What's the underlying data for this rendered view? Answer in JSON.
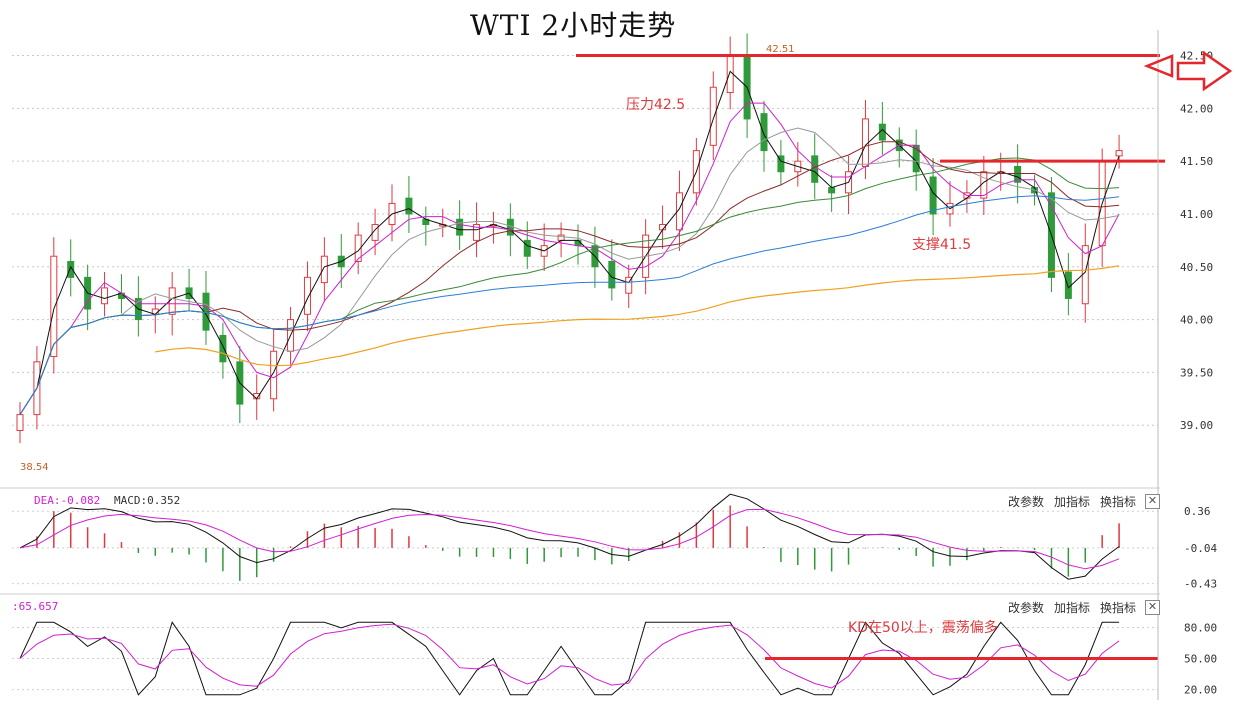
{
  "title": "WTI 2小时走势",
  "price_axis_ticks": [
    "42.50",
    "42.00",
    "41.50",
    "41.00",
    "40.50",
    "40.00",
    "39.50",
    "39.00"
  ],
  "high_label": "42.51",
  "low_label": "38.54",
  "annotations": {
    "resistance": "压力42.5",
    "support": "支撑41.5",
    "kd_note": "KD在50以上，震荡偏多"
  },
  "macd_panel": {
    "dea_label": "DEA:-0.082",
    "macd_label": "MACD:0.352",
    "ticks": [
      "0.36",
      "-0.04",
      "-0.43"
    ],
    "buttons": {
      "params": "改参数",
      "add": "加指标",
      "swap": "换指标",
      "close": "✕"
    }
  },
  "kd_panel": {
    "value_label": ":65.657",
    "ticks": [
      "80.00",
      "50.00",
      "20.00"
    ],
    "buttons": {
      "params": "改参数",
      "add": "加指标",
      "swap": "换指标",
      "close": "✕"
    }
  },
  "colors": {
    "up": "#e0393e",
    "down": "#2f9a3a",
    "level_line": "#e5262c",
    "k_line": "#111111",
    "d_line": "#d11fd1",
    "ma_blue": "#2b7fd6",
    "ma_orange": "#f0a020"
  },
  "chart_data": {
    "type": "candlestick",
    "instrument": "WTI",
    "ylim": [
      38.5,
      42.6
    ],
    "key_levels": {
      "resistance": 42.5,
      "support": 41.5
    },
    "range_high": 42.51,
    "range_low": 38.54,
    "close_series": [
      39.1,
      39.6,
      40.6,
      40.4,
      40.1,
      40.3,
      40.2,
      40.0,
      40.1,
      40.3,
      40.2,
      39.9,
      39.6,
      39.2,
      39.3,
      39.7,
      40.0,
      40.4,
      40.6,
      40.5,
      40.8,
      40.9,
      41.1,
      41.0,
      40.9,
      40.9,
      40.8,
      40.9,
      40.9,
      40.8,
      40.6,
      40.7,
      40.8,
      40.7,
      40.5,
      40.3,
      40.4,
      40.8,
      40.9,
      41.2,
      41.6,
      42.2,
      42.5,
      41.9,
      41.6,
      41.4,
      41.5,
      41.3,
      41.2,
      41.4,
      41.9,
      41.7,
      41.6,
      41.4,
      41.0,
      41.1,
      41.2,
      41.4,
      41.4,
      41.3,
      41.2,
      40.4,
      40.2,
      40.7,
      41.5,
      41.6
    ]
  }
}
